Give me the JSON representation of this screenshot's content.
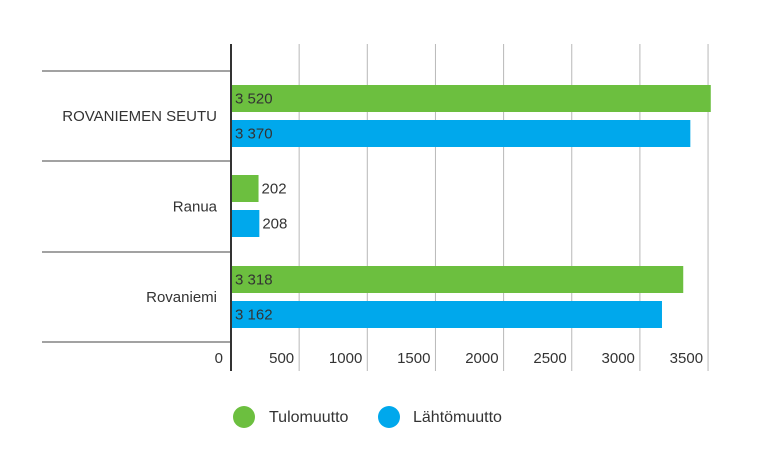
{
  "chart_data": {
    "type": "bar",
    "orientation": "horizontal",
    "categories": [
      "ROVANIEMEN SEUTU",
      "Ranua",
      "Rovaniemi"
    ],
    "series": [
      {
        "name": "Tulomuutto",
        "color": "#6cbf3f",
        "values": [
          3520,
          202,
          3318
        ],
        "labels": [
          "3 520",
          "202",
          "3 318"
        ]
      },
      {
        "name": "Lähtömuutto",
        "color": "#00a8ec",
        "values": [
          3370,
          208,
          3162
        ],
        "labels": [
          "3 370",
          "208",
          "3 162"
        ]
      }
    ],
    "xlim": [
      0,
      3500
    ],
    "x_ticks": [
      0,
      500,
      1000,
      1500,
      2000,
      2500,
      3000,
      3500
    ],
    "x_tick_labels": [
      "0",
      "500",
      "1000",
      "1500",
      "2000",
      "2500",
      "3000",
      "3500"
    ],
    "grid": true,
    "legend_position": "bottom",
    "title": "",
    "xlabel": "",
    "ylabel": ""
  }
}
